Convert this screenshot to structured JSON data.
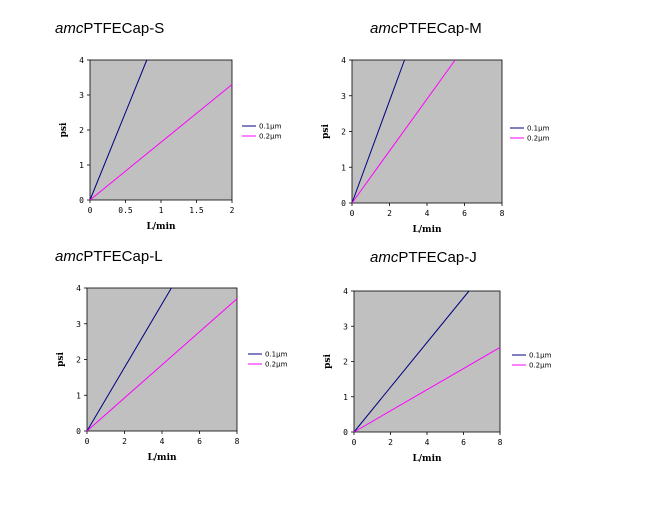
{
  "colors": {
    "plot_bg": "#c0c0c0",
    "series_0": "#000080",
    "series_1": "#ff00ff"
  },
  "chart_data": [
    {
      "type": "line",
      "title_prefix": "amc",
      "title_rest": "PTFECap-S",
      "xlabel": "L/min",
      "ylabel": "psi",
      "xlim": [
        0,
        2
      ],
      "ylim": [
        0,
        4
      ],
      "xticks": [
        0,
        0.5,
        1,
        1.5,
        2
      ],
      "xticklabels": [
        "0",
        "0.5",
        "1",
        "1.5",
        "2"
      ],
      "yticks": [
        0,
        1,
        2,
        3,
        4
      ],
      "yticklabels": [
        "0",
        "1",
        "2",
        "3",
        "4"
      ],
      "grid": false,
      "legend_position": "right",
      "series": [
        {
          "name": "0.1μm",
          "x": [
            0,
            0.8
          ],
          "y": [
            0,
            4
          ]
        },
        {
          "name": "0.2μm",
          "x": [
            0,
            2
          ],
          "y": [
            0,
            3.3
          ]
        }
      ]
    },
    {
      "type": "line",
      "title_prefix": "amc",
      "title_rest": "PTFECap-M",
      "xlabel": "L/min",
      "ylabel": "psi",
      "xlim": [
        0,
        8
      ],
      "ylim": [
        0,
        4
      ],
      "xticks": [
        0,
        2,
        4,
        6,
        8
      ],
      "xticklabels": [
        "0",
        "2",
        "4",
        "6",
        "8"
      ],
      "yticks": [
        0,
        1,
        2,
        3,
        4
      ],
      "yticklabels": [
        "0",
        "1",
        "2",
        "3",
        "4"
      ],
      "grid": false,
      "legend_position": "right",
      "series": [
        {
          "name": "0.1μm",
          "x": [
            0,
            2.8
          ],
          "y": [
            0,
            4
          ]
        },
        {
          "name": "0.2μm",
          "x": [
            0,
            5.5
          ],
          "y": [
            0,
            4
          ]
        }
      ]
    },
    {
      "type": "line",
      "title_prefix": "amc",
      "title_rest": "PTFECap-L",
      "xlabel": "L/min",
      "ylabel": "psi",
      "xlim": [
        0,
        8
      ],
      "ylim": [
        0,
        4
      ],
      "xticks": [
        0,
        2,
        4,
        6,
        8
      ],
      "xticklabels": [
        "0",
        "2",
        "4",
        "6",
        "8"
      ],
      "yticks": [
        0,
        1,
        2,
        3,
        4
      ],
      "yticklabels": [
        "0",
        "1",
        "2",
        "3",
        "4"
      ],
      "grid": false,
      "legend_position": "right",
      "series": [
        {
          "name": "0.1μm",
          "x": [
            0,
            4.5
          ],
          "y": [
            0,
            4
          ]
        },
        {
          "name": "0.2μm",
          "x": [
            0,
            8
          ],
          "y": [
            0,
            3.7
          ]
        }
      ]
    },
    {
      "type": "line",
      "title_prefix": "amc",
      "title_rest": "PTFECap-J",
      "xlabel": "L/min",
      "ylabel": "psi",
      "xlim": [
        0,
        8
      ],
      "ylim": [
        0,
        4
      ],
      "xticks": [
        0,
        2,
        4,
        6,
        8
      ],
      "xticklabels": [
        "0",
        "2",
        "4",
        "6",
        "8"
      ],
      "yticks": [
        0,
        1,
        2,
        3,
        4
      ],
      "yticklabels": [
        "0",
        "1",
        "2",
        "3",
        "4"
      ],
      "grid": false,
      "legend_position": "right",
      "series": [
        {
          "name": "0.1μm",
          "x": [
            0,
            6.3
          ],
          "y": [
            0,
            4
          ]
        },
        {
          "name": "0.2μm",
          "x": [
            0,
            8
          ],
          "y": [
            0,
            2.4
          ]
        }
      ]
    }
  ]
}
